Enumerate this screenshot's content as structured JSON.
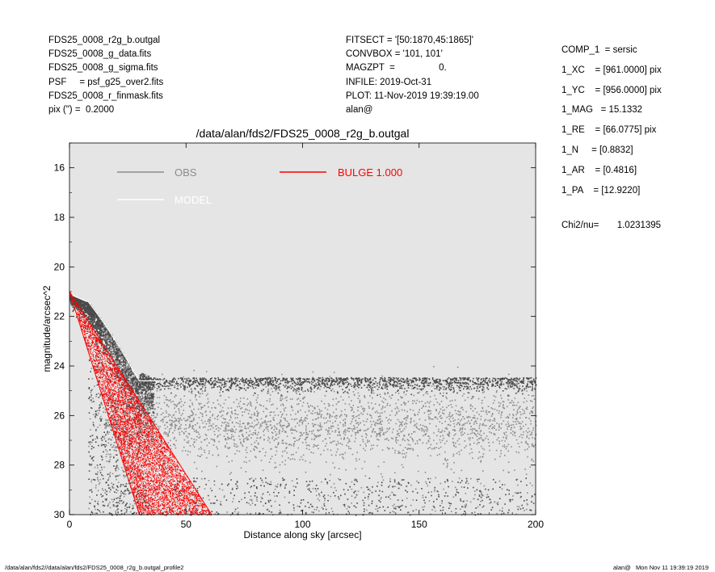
{
  "header_left": [
    "FDS25_0008_r2g_b.outgal",
    "FDS25_0008_g_data.fits",
    "FDS25_0008_g_sigma.fits",
    "PSF     = psf_g25_over2.fits",
    "FDS25_0008_r_finmask.fits",
    "pix (\") =  0.2000"
  ],
  "header_mid": [
    "FITSECT = '[50:1870,45:1865]'",
    "CONVBOX = '101, 101'",
    "MAGZPT  =                 0.",
    "INFILE: 2019-Oct-31",
    "PLOT: 11-Nov-2019 19:39:19.00",
    "alan@"
  ],
  "header_right": [
    "COMP_1  = sersic",
    "1_XC    = [961.0000] pix",
    "1_YC    = [956.0000] pix",
    "1_MAG   = 15.1332",
    "1_RE    = [66.0775] pix",
    "1_N     = [0.8832]",
    "1_AR    = [0.4816]",
    "1_PA    = [12.9220]"
  ],
  "chi2": "Chi2/nu=       1.0231395",
  "footer_left": "/data/alan/fds2//data/alan/fds2/FDS25_0008_r2g_b.outgal_profile2",
  "footer_right": "alan@   Mon Nov 11 19:39:19 2019",
  "colors": {
    "plot_bg": "#e5e5e5",
    "obs": "#8c8c8c",
    "obs_dark": "#4a4a4a",
    "model": "#ffffff",
    "bulge": "#ff0000"
  },
  "chart_data": {
    "type": "scatter",
    "title": "/data/alan/fds2/FDS25_0008_r2g_b.outgal",
    "xlabel": "Distance along sky [arcsec]",
    "ylabel": "magnitude/arcsec^2",
    "xlim": [
      0,
      200
    ],
    "ylim": [
      30,
      15
    ],
    "y_inverted": true,
    "xticks": [
      0,
      50,
      100,
      150,
      200
    ],
    "yticks": [
      16,
      18,
      20,
      22,
      24,
      26,
      28,
      30
    ],
    "legend": [
      {
        "name": "OBS",
        "color": "#8c8c8c"
      },
      {
        "name": "MODEL",
        "color": "#ffffff"
      },
      {
        "name": "BULGE  1.000",
        "color": "#ff0000"
      }
    ],
    "legend_placement": "top",
    "series": [
      {
        "name": "OBS",
        "kind": "scatter",
        "description_points": [
          {
            "x": 0,
            "y": 21.1
          },
          {
            "x": 10,
            "y": 21.5
          },
          {
            "x": 20,
            "y": 22.5
          },
          {
            "x": 30,
            "y": 24.0
          },
          {
            "x": 40,
            "y": 24.6
          },
          {
            "x": 100,
            "y": 24.7
          },
          {
            "x": 200,
            "y": 24.6
          }
        ],
        "sky_band": {
          "x_from": 15,
          "x_to": 200,
          "y_top": 24.5,
          "y_bottom": 30,
          "y_dense": [
            25.3,
            27.5
          ]
        }
      },
      {
        "name": "BULGE  1.000",
        "kind": "wedge",
        "apex": {
          "x": 0,
          "y": 21.0
        },
        "inner_edge_at_y30_x": 30,
        "outer_edge_at_y30_x": 61
      }
    ]
  }
}
